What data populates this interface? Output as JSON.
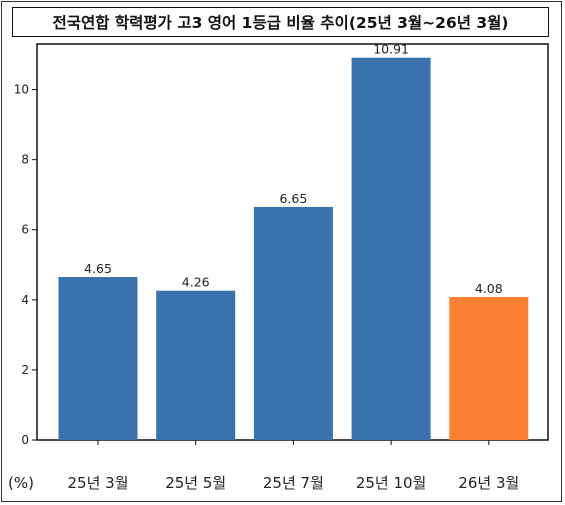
{
  "title": "전국연합 학력평가 고3 영어 1등급 비율 추이(25년 3월~26년 3월)",
  "unit_label": "(%)",
  "colors": {
    "default_bar": "#3a72ad",
    "highlight_bar": "#fd8035"
  },
  "chart_data": {
    "type": "bar",
    "title": "전국연합 학력평가 고3 영어 1등급 비율 추이(25년 3월~26년 3월)",
    "categories": [
      "25년 3월",
      "25년 5월",
      "25년 7월",
      "25년 10월",
      "26년 3월"
    ],
    "values": [
      4.65,
      4.26,
      6.65,
      10.91,
      4.08
    ],
    "data_labels": [
      "4.65",
      "4.26",
      "6.65",
      "10.91",
      "4.08"
    ],
    "highlight_index": 4,
    "ylim": [
      0,
      11.3
    ],
    "yticks": [
      0,
      2,
      4,
      6,
      8,
      10
    ],
    "ylabel": "(%)",
    "xlabel": "",
    "grid": false,
    "legend": "none"
  }
}
